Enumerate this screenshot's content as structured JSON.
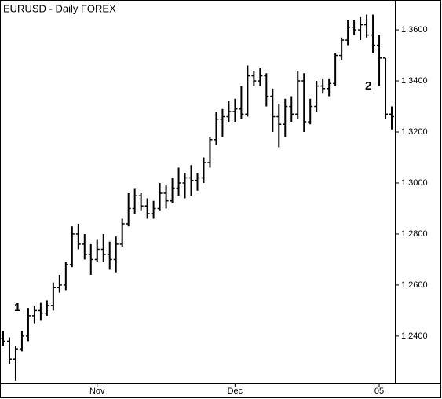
{
  "chart_data": {
    "type": "ohlc",
    "title": "EURUSD - Daily   FOREX",
    "color": "#000000",
    "categories": [
      null,
      null,
      null,
      null,
      null,
      null,
      null,
      null,
      null,
      null,
      null,
      null,
      null,
      null,
      null,
      "Nov",
      null,
      null,
      null,
      null,
      null,
      null,
      null,
      null,
      null,
      null,
      null,
      null,
      null,
      null,
      null,
      null,
      null,
      null,
      null,
      null,
      null,
      "Dec",
      null,
      null,
      null,
      null,
      null,
      null,
      null,
      null,
      null,
      null,
      null,
      null,
      null,
      null,
      null,
      null,
      null,
      null,
      null,
      null,
      null,
      null,
      "05",
      null,
      null
    ],
    "open": [
      1.239,
      1.238,
      1.231,
      1.235,
      1.24,
      1.248,
      1.25,
      1.249,
      1.252,
      1.259,
      1.26,
      1.268,
      1.28,
      1.276,
      1.272,
      1.27,
      1.274,
      1.272,
      1.27,
      1.276,
      1.284,
      1.29,
      1.295,
      1.291,
      1.288,
      1.29,
      1.296,
      1.293,
      1.298,
      1.3,
      1.302,
      1.301,
      1.302,
      1.308,
      1.317,
      1.325,
      1.326,
      1.328,
      1.329,
      1.327,
      1.342,
      1.34,
      1.342,
      1.334,
      1.326,
      1.323,
      1.33,
      1.327,
      1.34,
      1.324,
      1.33,
      1.338,
      1.337,
      1.339,
      1.35,
      1.356,
      1.361,
      1.36,
      1.362,
      1.358,
      1.354,
      1.349,
      1.327
    ],
    "high": [
      1.242,
      1.2395,
      1.236,
      1.242,
      1.251,
      1.252,
      1.253,
      1.254,
      1.261,
      1.264,
      1.269,
      1.283,
      1.284,
      1.28,
      1.276,
      1.278,
      1.28,
      1.277,
      1.279,
      1.286,
      1.296,
      1.298,
      1.296,
      1.294,
      1.293,
      1.3,
      1.299,
      1.302,
      1.306,
      1.304,
      1.307,
      1.304,
      1.31,
      1.318,
      1.328,
      1.329,
      1.332,
      1.333,
      1.338,
      1.346,
      1.344,
      1.345,
      1.343,
      1.337,
      1.331,
      1.333,
      1.334,
      1.344,
      1.343,
      1.333,
      1.34,
      1.341,
      1.341,
      1.351,
      1.357,
      1.364,
      1.364,
      1.365,
      1.366,
      1.366,
      1.358,
      1.349,
      1.33
    ],
    "low": [
      1.236,
      1.229,
      1.2225,
      1.234,
      1.238,
      1.245,
      1.246,
      1.248,
      1.25,
      1.257,
      1.258,
      1.267,
      1.274,
      1.27,
      1.264,
      1.269,
      1.269,
      1.266,
      1.265,
      1.275,
      1.283,
      1.288,
      1.289,
      1.286,
      1.286,
      1.289,
      1.29,
      1.292,
      1.295,
      1.294,
      1.295,
      1.297,
      1.3,
      1.306,
      1.315,
      1.318,
      1.324,
      1.324,
      1.325,
      1.326,
      1.338,
      1.338,
      1.33,
      1.32,
      1.314,
      1.318,
      1.324,
      1.325,
      1.32,
      1.323,
      1.328,
      1.335,
      1.334,
      1.338,
      1.348,
      1.354,
      1.358,
      1.356,
      1.357,
      1.351,
      1.338,
      1.325,
      1.321
    ],
    "close": [
      1.238,
      1.231,
      1.235,
      1.24,
      1.248,
      1.25,
      1.249,
      1.252,
      1.259,
      1.26,
      1.268,
      1.28,
      1.276,
      1.272,
      1.27,
      1.274,
      1.272,
      1.27,
      1.276,
      1.284,
      1.29,
      1.295,
      1.291,
      1.288,
      1.29,
      1.296,
      1.293,
      1.298,
      1.3,
      1.302,
      1.301,
      1.302,
      1.308,
      1.317,
      1.325,
      1.326,
      1.328,
      1.329,
      1.327,
      1.342,
      1.34,
      1.342,
      1.334,
      1.326,
      1.323,
      1.33,
      1.327,
      1.34,
      1.324,
      1.33,
      1.338,
      1.337,
      1.339,
      1.35,
      1.356,
      1.361,
      1.36,
      1.362,
      1.358,
      1.354,
      1.349,
      1.327,
      1.326
    ],
    "ylim": [
      1.2215,
      1.3711
    ],
    "yticks": [
      {
        "value": 1.24,
        "label": "1.2400"
      },
      {
        "value": 1.26,
        "label": "1.2600"
      },
      {
        "value": 1.28,
        "label": "1.2800"
      },
      {
        "value": 1.3,
        "label": "1.3000"
      },
      {
        "value": 1.32,
        "label": "1.3200"
      },
      {
        "value": 1.34,
        "label": "1.3400"
      },
      {
        "value": 1.36,
        "label": "1.3600"
      }
    ],
    "annotations": [
      "1",
      "2"
    ]
  }
}
